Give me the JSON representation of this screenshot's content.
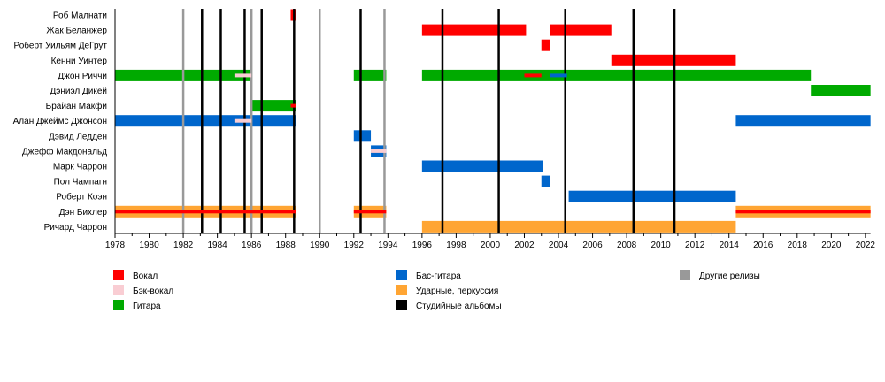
{
  "chart_data": {
    "type": "timeline",
    "title": "",
    "xlabel": "",
    "ylabel": "",
    "xlim": [
      1978,
      2022.3
    ],
    "x_ticks": [
      1978,
      1980,
      1982,
      1984,
      1986,
      1988,
      1990,
      1992,
      1994,
      1996,
      1998,
      2000,
      2002,
      2004,
      2006,
      2008,
      2010,
      2012,
      2014,
      2016,
      2018,
      2020,
      2022
    ],
    "legend_position": "bottom",
    "roles": {
      "vocal": {
        "label": "Вокал",
        "color": "#ff0000"
      },
      "backing": {
        "label": "Бэк-вокал",
        "color": "#f9cdd3"
      },
      "guitar": {
        "label": "Гитара",
        "color": "#00aa00"
      },
      "bass": {
        "label": "Бас-гитара",
        "color": "#0066cc"
      },
      "drums": {
        "label": "Ударные, перкуссия",
        "color": "#ffa533"
      },
      "studio": {
        "label": "Студийные альбомы",
        "color": "#000000"
      },
      "other": {
        "label": "Другие релизы",
        "color": "#999999"
      }
    },
    "legend_order": [
      [
        "vocal",
        "backing",
        "guitar"
      ],
      [
        "bass",
        "drums",
        "studio"
      ],
      [
        "other"
      ]
    ],
    "members": [
      {
        "name": "Роб Малнати",
        "bars": [
          {
            "role": "vocal",
            "from": 1988.3,
            "to": 1988.6
          }
        ]
      },
      {
        "name": "Жак Беланжер",
        "bars": [
          {
            "role": "vocal",
            "from": 1996,
            "to": 2002.1
          },
          {
            "role": "vocal",
            "from": 2003.5,
            "to": 2007.1
          }
        ]
      },
      {
        "name": "Роберт Уильям ДеГрут",
        "bars": [
          {
            "role": "vocal",
            "from": 2003,
            "to": 2003.5
          }
        ]
      },
      {
        "name": "Кенни Уинтер",
        "bars": [
          {
            "role": "vocal",
            "from": 2007.1,
            "to": 2014.4
          }
        ]
      },
      {
        "name": "Джон Риччи",
        "bars": [
          {
            "role": "guitar",
            "from": 1978,
            "to": 1986
          },
          {
            "role": "guitar",
            "from": 1992,
            "to": 1993.9
          },
          {
            "role": "guitar",
            "from": 1996,
            "to": 2018.8
          }
        ],
        "overlays": [
          {
            "role": "backing",
            "from": 1985,
            "to": 1986
          },
          {
            "role": "vocal",
            "from": 2002,
            "to": 2003
          },
          {
            "role": "bass",
            "from": 2003.5,
            "to": 2004.5
          }
        ]
      },
      {
        "name": "Дэниэл Дикей",
        "bars": [
          {
            "role": "guitar",
            "from": 2018.8,
            "to": 2022.3
          }
        ]
      },
      {
        "name": "Брайан Макфи",
        "bars": [
          {
            "role": "guitar",
            "from": 1986,
            "to": 1988.6
          }
        ],
        "overlays": [
          {
            "role": "vocal",
            "from": 1988.3,
            "to": 1988.6
          }
        ]
      },
      {
        "name": "Алан Джеймс Джонсон",
        "bars": [
          {
            "role": "bass",
            "from": 1978,
            "to": 1988.6
          },
          {
            "role": "bass",
            "from": 2014.4,
            "to": 2022.3
          }
        ],
        "overlays": [
          {
            "role": "backing",
            "from": 1985,
            "to": 1986
          }
        ]
      },
      {
        "name": "Дэвид Ледден",
        "bars": [
          {
            "role": "bass",
            "from": 1992,
            "to": 1993
          }
        ]
      },
      {
        "name": "Джефф Макдональд",
        "bars": [
          {
            "role": "bass",
            "from": 1993,
            "to": 1993.9
          }
        ],
        "overlays": [
          {
            "role": "backing",
            "from": 1993,
            "to": 1993.9
          }
        ]
      },
      {
        "name": "Марк Чаррон",
        "bars": [
          {
            "role": "bass",
            "from": 1996,
            "to": 2003.1
          }
        ]
      },
      {
        "name": "Пол Чампагн",
        "bars": [
          {
            "role": "bass",
            "from": 2003,
            "to": 2003.5
          }
        ]
      },
      {
        "name": "Роберт Коэн",
        "bars": [
          {
            "role": "bass",
            "from": 2004.6,
            "to": 2014.4
          }
        ]
      },
      {
        "name": "Дэн Бихлер",
        "bars": [
          {
            "role": "drums",
            "from": 1978,
            "to": 1988.6
          },
          {
            "role": "drums",
            "from": 1992,
            "to": 1993.9
          },
          {
            "role": "drums",
            "from": 2014.4,
            "to": 2022.3
          }
        ],
        "overlays": [
          {
            "role": "vocal",
            "from": 1978,
            "to": 1988.6
          },
          {
            "role": "vocal",
            "from": 1992,
            "to": 1993.9
          },
          {
            "role": "vocal",
            "from": 2014.4,
            "to": 2022.3
          }
        ]
      },
      {
        "name": "Ричард  Чаррон",
        "bars": [
          {
            "role": "drums",
            "from": 1996,
            "to": 2014.4
          }
        ]
      }
    ],
    "studio_albums": [
      1983.1,
      1984.2,
      1985.6,
      1986.6,
      1988.5,
      1992.4,
      1997.2,
      2000.5,
      2004.4,
      2008.4,
      2010.8
    ],
    "other_releases": [
      1982,
      1986,
      1990,
      1993.8
    ]
  }
}
